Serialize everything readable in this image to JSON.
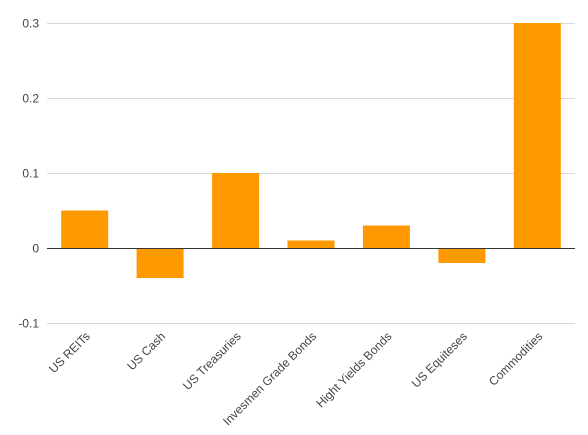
{
  "chart_data": {
    "type": "bar",
    "title": "",
    "xlabel": "",
    "ylabel": "",
    "categories": [
      "US REITs",
      "US Cash",
      "US Treasuries",
      "Invesmen Grade Bonds",
      "Hight Yields Bonds",
      "US Equiteses",
      "Commodities"
    ],
    "values": [
      0.05,
      -0.04,
      0.1,
      0.01,
      0.03,
      -0.02,
      0.3
    ],
    "ylim": [
      -0.1,
      0.3
    ],
    "yticks": [
      -0.1,
      0,
      0.1,
      0.2,
      0.3
    ],
    "ytick_labels": [
      "-0.1",
      "0",
      "0.1",
      "0.2",
      "0.3"
    ],
    "grid": true,
    "legend": "none",
    "bar_color": "#ff9900"
  }
}
